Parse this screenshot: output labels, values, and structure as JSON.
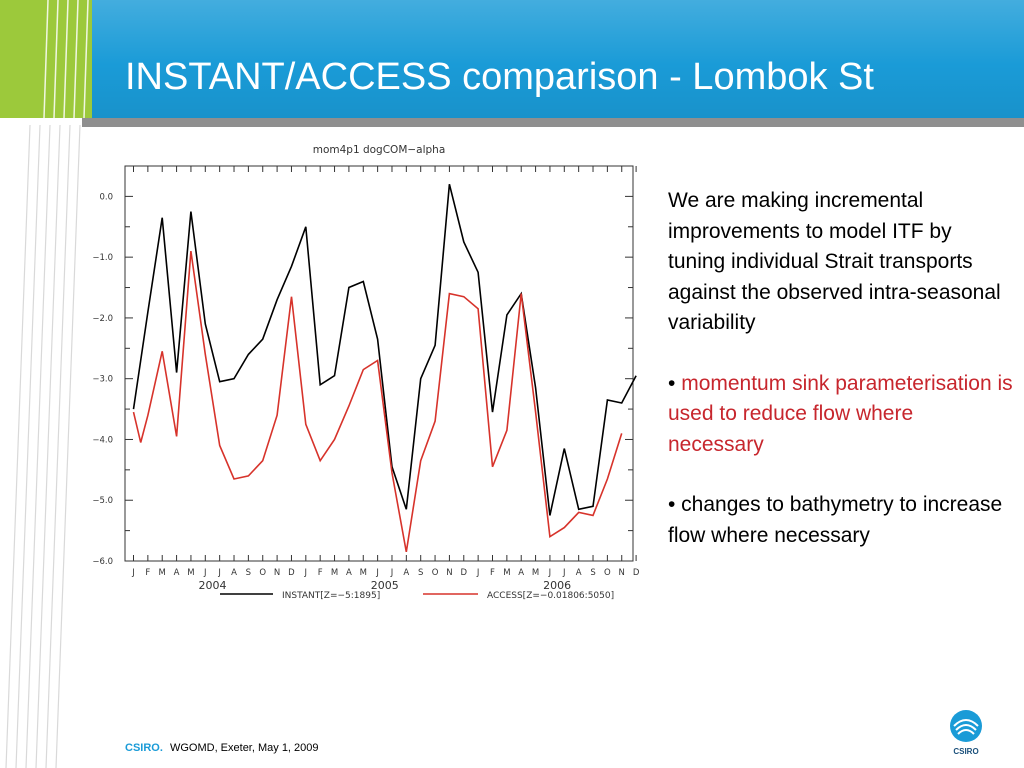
{
  "slide": {
    "title": "INSTANT/ACCESS comparison - Lombok St",
    "colors": {
      "header_blue": "#1a9bd7",
      "accent_green": "#9cc93b",
      "red_text": "#c7262d"
    }
  },
  "body": {
    "para1": "We are making incremental improvements to model ITF by tuning individual Strait transports against the observed intra-seasonal variability",
    "bullet1_mark": "•",
    "bullet1": "momentum sink parameterisation is used to reduce flow where necessary",
    "bullet2": "• changes to bathymetry to increase flow where necessary"
  },
  "footer": {
    "brand": "CSIRO.",
    "text": "WGOMD, Exeter, May 1, 2009"
  },
  "logo": {
    "text": "CSIRO",
    "icon": "csiro-logo-icon"
  },
  "chart_data": {
    "type": "line",
    "title": "mom4p1 dogCOM−alpha",
    "ylim": [
      -6.0,
      0.5
    ],
    "yticks": [
      0.0,
      -1.0,
      -2.0,
      -3.0,
      -4.0,
      -5.0,
      -6.0
    ],
    "ytick_labels": [
      "0.0",
      "−1.0",
      "−2.0",
      "−3.0",
      "−4.0",
      "−5.0",
      "−6.0"
    ],
    "month_labels": [
      "J",
      "F",
      "M",
      "A",
      "M",
      "J",
      "J",
      "A",
      "S",
      "O",
      "N",
      "D",
      "J",
      "F",
      "M",
      "A",
      "M",
      "J",
      "J",
      "A",
      "S",
      "O",
      "N",
      "D",
      "J",
      "F",
      "M",
      "A",
      "M",
      "J",
      "J",
      "A",
      "S",
      "O",
      "N",
      "D"
    ],
    "year_labels": [
      "2004",
      "2005",
      "2006"
    ],
    "grid": false,
    "legend_position": "bottom",
    "series": [
      {
        "name": "INSTANT[Z=−5:1895]",
        "color": "#000000",
        "points": [
          [
            0,
            -3.5
          ],
          [
            1,
            -1.9
          ],
          [
            2,
            -0.35
          ],
          [
            3,
            -2.9
          ],
          [
            4,
            -0.25
          ],
          [
            5,
            -2.1
          ],
          [
            6,
            -3.05
          ],
          [
            7,
            -3.0
          ],
          [
            8,
            -2.6
          ],
          [
            9,
            -2.35
          ],
          [
            10,
            -1.7
          ],
          [
            11,
            -1.15
          ],
          [
            12,
            -0.5
          ],
          [
            13,
            -3.1
          ],
          [
            14,
            -2.95
          ],
          [
            15,
            -1.5
          ],
          [
            16,
            -1.4
          ],
          [
            17,
            -2.35
          ],
          [
            18,
            -4.45
          ],
          [
            19,
            -5.15
          ],
          [
            20,
            -3.0
          ],
          [
            21,
            -2.45
          ],
          [
            22,
            0.2
          ],
          [
            23,
            -0.75
          ],
          [
            24,
            -1.25
          ],
          [
            25,
            -3.55
          ],
          [
            26,
            -1.95
          ],
          [
            27,
            -1.6
          ],
          [
            28,
            -3.15
          ],
          [
            29,
            -5.25
          ],
          [
            30,
            -4.15
          ],
          [
            31,
            -5.15
          ],
          [
            32,
            -5.1
          ],
          [
            33,
            -3.35
          ],
          [
            34,
            -3.4
          ],
          [
            35,
            -2.95
          ]
        ]
      },
      {
        "name": "ACCESS[Z=−0.01806:5050]",
        "color": "#d7332b",
        "points": [
          [
            0,
            -3.55
          ],
          [
            0.5,
            -4.05
          ],
          [
            1,
            -3.6
          ],
          [
            2,
            -2.55
          ],
          [
            3,
            -3.95
          ],
          [
            4,
            -0.9
          ],
          [
            5,
            -2.6
          ],
          [
            6,
            -4.1
          ],
          [
            7,
            -4.65
          ],
          [
            8,
            -4.6
          ],
          [
            9,
            -4.35
          ],
          [
            10,
            -3.6
          ],
          [
            11,
            -1.65
          ],
          [
            12,
            -3.75
          ],
          [
            13,
            -4.35
          ],
          [
            14,
            -4.0
          ],
          [
            15,
            -3.45
          ],
          [
            16,
            -2.85
          ],
          [
            17,
            -2.7
          ],
          [
            18,
            -4.55
          ],
          [
            19,
            -5.85
          ],
          [
            20,
            -4.35
          ],
          [
            21,
            -3.7
          ],
          [
            22,
            -1.6
          ],
          [
            23,
            -1.65
          ],
          [
            24,
            -1.85
          ],
          [
            25,
            -4.45
          ],
          [
            26,
            -3.85
          ],
          [
            27,
            -1.6
          ],
          [
            28,
            -3.55
          ],
          [
            29,
            -5.6
          ],
          [
            30,
            -5.45
          ],
          [
            31,
            -5.2
          ],
          [
            32,
            -5.25
          ],
          [
            33,
            -4.65
          ],
          [
            34,
            -3.9
          ]
        ]
      }
    ]
  }
}
